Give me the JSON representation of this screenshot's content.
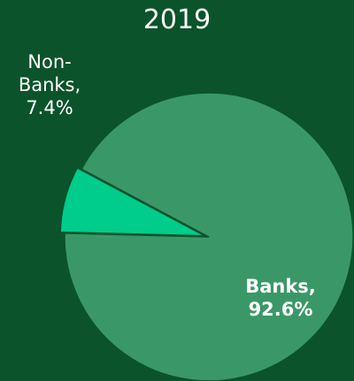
{
  "chart_data": {
    "type": "pie",
    "title": "2019",
    "slices": [
      {
        "label": "Banks",
        "value": 92.6,
        "display": "Banks,\n92.6%",
        "color": "#3a9868",
        "label_color": "#ffffff",
        "label_weight": "bold"
      },
      {
        "label": "Non-Banks",
        "value": 7.4,
        "display": "Non-\nBanks,\n7.4%",
        "color": "#00cc8b",
        "label_color": "#ffffff",
        "label_weight": "normal",
        "exploded": true
      }
    ]
  }
}
